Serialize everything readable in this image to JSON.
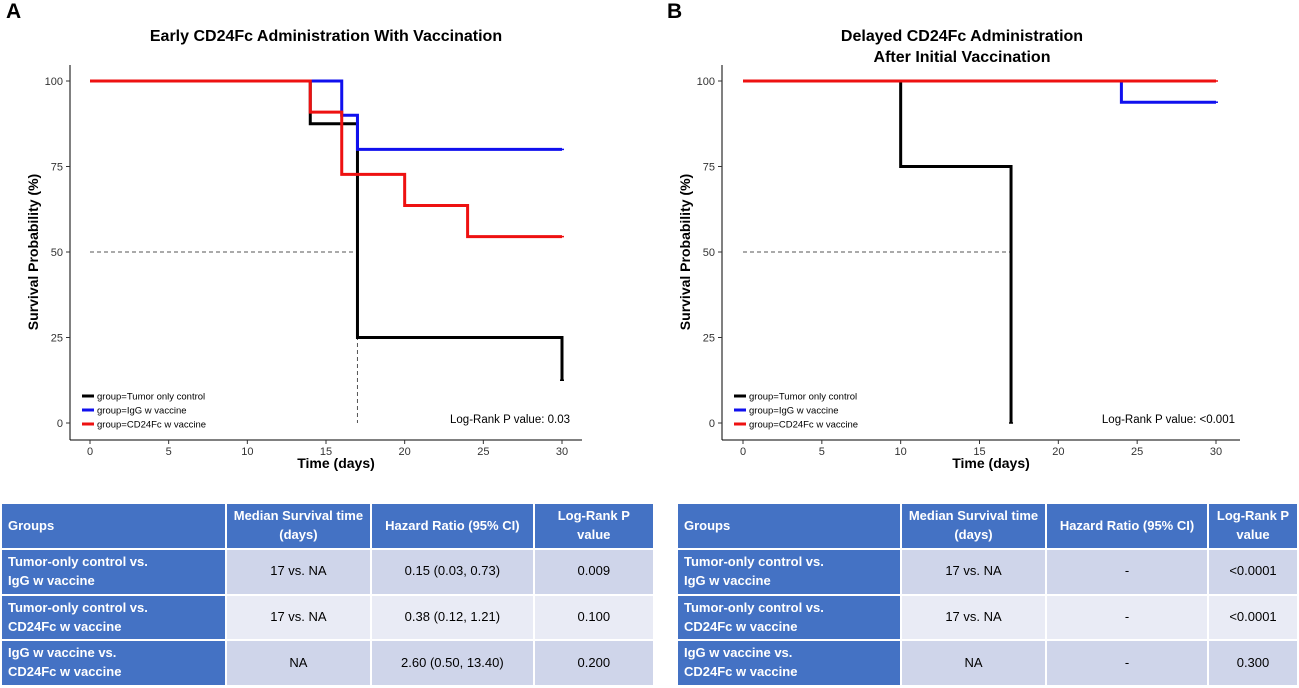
{
  "chart_data": [
    {
      "type": "line",
      "panel_label": "A",
      "title": [
        "Early CD24Fc Administration With Vaccination"
      ],
      "xlabel": "Time (days)",
      "ylabel": "Survival Probability (%)",
      "xlim": [
        0,
        30
      ],
      "ylim": [
        0,
        100
      ],
      "xticks": [
        0,
        5,
        10,
        15,
        20,
        25,
        30
      ],
      "yticks": [
        0,
        25,
        50,
        75,
        100
      ],
      "median_reference": {
        "y": 50,
        "x_drop": 17
      },
      "annotation": "Log-Rank P value: 0.03",
      "legend_position": "bottom-left",
      "series": [
        {
          "name": "group=Tumor only control",
          "color": "#000000",
          "x": [
            0,
            14,
            17,
            30
          ],
          "values": [
            100,
            87.5,
            25,
            12.5
          ],
          "end_x": 30
        },
        {
          "name": "group=IgG w vaccine",
          "color": "#1010ee",
          "x": [
            0,
            16,
            17,
            30
          ],
          "values": [
            100,
            90,
            80,
            80
          ],
          "end_x": 30
        },
        {
          "name": "group=CD24Fc w vaccine",
          "color": "#ee1111",
          "x": [
            0,
            14,
            16,
            20,
            24,
            30
          ],
          "values": [
            100,
            90.9,
            72.7,
            63.6,
            54.5,
            54.5
          ],
          "end_x": 30
        }
      ]
    },
    {
      "type": "line",
      "panel_label": "B",
      "title": [
        "Delayed CD24Fc Administration",
        "After Initial Vaccination"
      ],
      "xlabel": "Time (days)",
      "ylabel": "Survival Probability (%)",
      "xlim": [
        0,
        30
      ],
      "ylim": [
        0,
        100
      ],
      "xticks": [
        0,
        5,
        10,
        15,
        20,
        25,
        30
      ],
      "yticks": [
        0,
        25,
        50,
        75,
        100
      ],
      "median_reference": {
        "y": 50,
        "x_drop": null
      },
      "annotation": "Log-Rank P value: <0.001",
      "legend_position": "bottom-left",
      "series": [
        {
          "name": "group=Tumor only control",
          "color": "#000000",
          "x": [
            0,
            10,
            17
          ],
          "values": [
            100,
            75,
            0
          ],
          "end_x": 17
        },
        {
          "name": "group=IgG w vaccine",
          "color": "#1010ee",
          "x": [
            0,
            24,
            30
          ],
          "values": [
            100,
            93.8,
            93.8
          ],
          "end_x": 30
        },
        {
          "name": "group=CD24Fc w vaccine",
          "color": "#ee1111",
          "x": [
            0,
            30
          ],
          "values": [
            100,
            100
          ],
          "end_x": 30
        }
      ]
    }
  ],
  "tables": [
    {
      "headers": [
        "Groups",
        "Median Survival time (days)",
        "Hazard Ratio (95% CI)",
        "Log-Rank P value"
      ],
      "rows": [
        {
          "group": [
            "Tumor-only control vs.",
            "IgG w vaccine"
          ],
          "median": "17 vs. NA",
          "hr": "0.15 (0.03, 0.73)",
          "p": "0.009"
        },
        {
          "group": [
            "Tumor-only control vs.",
            "CD24Fc w vaccine"
          ],
          "median": "17 vs. NA",
          "hr": "0.38 (0.12, 1.21)",
          "p": "0.100"
        },
        {
          "group": [
            "IgG w vaccine vs.",
            "CD24Fc w vaccine"
          ],
          "median": "NA",
          "hr": "2.60 (0.50, 13.40)",
          "p": "0.200"
        }
      ]
    },
    {
      "headers": [
        "Groups",
        "Median Survival time (days)",
        "Hazard Ratio (95% CI)",
        "Log-Rank P value"
      ],
      "rows": [
        {
          "group": [
            "Tumor-only control vs.",
            "IgG w vaccine"
          ],
          "median": "17 vs. NA",
          "hr": "-",
          "p": "<0.0001"
        },
        {
          "group": [
            "Tumor-only control vs.",
            "CD24Fc w vaccine"
          ],
          "median": "17 vs. NA",
          "hr": "-",
          "p": "<0.0001"
        },
        {
          "group": [
            "IgG w vaccine vs.",
            "CD24Fc w vaccine"
          ],
          "median": "NA",
          "hr": "-",
          "p": "0.300"
        }
      ]
    }
  ]
}
